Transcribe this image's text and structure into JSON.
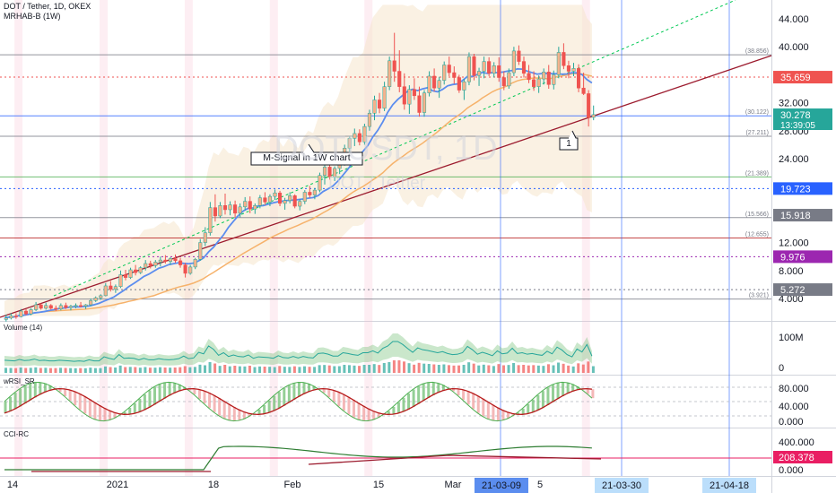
{
  "header": {
    "symbol_line": "DOT / Tether, 1D, OKEX",
    "indicator_line": "MRHAB-B (1W)"
  },
  "chart_data": {
    "type": "candlestick",
    "title": "DOT / Tether, 1D, OKEX",
    "watermark_symbol": "DOTUSDT, 1D",
    "watermark_name": "DOT / Tether",
    "y_ticks": [
      "44.000",
      "40.000",
      "36.000",
      "32.000",
      "28.000",
      "24.000",
      "20.000",
      "16.000",
      "12.000",
      "8.000",
      "4.000"
    ],
    "x_ticks": [
      "14",
      "2021",
      "18",
      "Feb",
      "15",
      "Mar",
      "5"
    ],
    "x_highlight_labels": [
      "21-03-09",
      "21-03-30",
      "21-04-18"
    ],
    "price_labels": [
      {
        "text": "35.659",
        "color": "#ef5350"
      },
      {
        "text": "30.278",
        "color": "#26a69a",
        "sub": "13:39:05"
      },
      {
        "text": "19.723",
        "color": "#2962ff"
      },
      {
        "text": "15.918",
        "color": "#787b86"
      },
      {
        "text": "9.976",
        "color": "#9c27b0"
      },
      {
        "text": "5.272",
        "color": "#787b86"
      }
    ],
    "fib_labels": [
      "(38.856)",
      "(30.122)",
      "(27.211)",
      "(21.389)",
      "(15.566)",
      "(12.655)",
      "(3.921)"
    ],
    "fib_levels": [
      38.856,
      30.122,
      27.211,
      21.389,
      15.566,
      12.655,
      3.921
    ],
    "annotation": "M-Signal in 1W chart",
    "marker_label": "1",
    "last_price": 30.278,
    "candles": [
      [
        1,
        1.7,
        0.7,
        1.2
      ],
      [
        1.2,
        1.9,
        1.0,
        1.5
      ],
      [
        1.5,
        1.9,
        1.1,
        1.4
      ],
      [
        1.4,
        2.5,
        1.3,
        2.2
      ],
      [
        2.2,
        2.5,
        1.6,
        1.8
      ],
      [
        1.8,
        2.6,
        1.6,
        2.4
      ],
      [
        2.4,
        3.5,
        2.2,
        3.1
      ],
      [
        3.1,
        3.3,
        2.4,
        2.6
      ],
      [
        2.6,
        3.4,
        2.4,
        3.0
      ],
      [
        3.0,
        3.2,
        2.4,
        2.6
      ],
      [
        2.6,
        3.0,
        2.2,
        2.5
      ],
      [
        2.5,
        3.3,
        2.3,
        3.0
      ],
      [
        3.0,
        3.4,
        2.5,
        2.7
      ],
      [
        2.7,
        3.1,
        2.3,
        2.9
      ],
      [
        2.9,
        3.3,
        2.6,
        3.0
      ],
      [
        3.0,
        3.5,
        2.7,
        2.9
      ],
      [
        2.9,
        3.2,
        2.5,
        3.1
      ],
      [
        3.1,
        4.0,
        2.9,
        3.7
      ],
      [
        3.7,
        4.3,
        3.5,
        4.1
      ],
      [
        4.1,
        4.6,
        3.8,
        4.4
      ],
      [
        4.4,
        6.2,
        4.3,
        5.8
      ],
      [
        5.8,
        6.5,
        5.0,
        5.3
      ],
      [
        5.3,
        6.0,
        4.8,
        5.7
      ],
      [
        5.7,
        8.0,
        5.5,
        7.4
      ],
      [
        7.4,
        8.1,
        6.6,
        7.0
      ],
      [
        7.0,
        8.4,
        6.8,
        8.1
      ],
      [
        8.1,
        8.8,
        7.3,
        7.7
      ],
      [
        7.7,
        8.6,
        7.5,
        8.4
      ],
      [
        8.4,
        9.5,
        8.0,
        9.0
      ],
      [
        9.0,
        9.4,
        8.3,
        8.7
      ],
      [
        8.7,
        9.5,
        8.4,
        9.2
      ],
      [
        9.2,
        10.0,
        8.6,
        9.5
      ],
      [
        9.5,
        10.2,
        9.0,
        9.3
      ],
      [
        9.3,
        9.9,
        8.8,
        9.7
      ],
      [
        9.7,
        10.3,
        9.1,
        9.4
      ],
      [
        9.4,
        9.8,
        8.4,
        8.8
      ],
      [
        8.8,
        9.1,
        7.0,
        7.6
      ],
      [
        7.6,
        8.8,
        7.4,
        8.5
      ],
      [
        8.5,
        9.8,
        8.2,
        9.6
      ],
      [
        9.6,
        12.5,
        9.4,
        12.0
      ],
      [
        12.0,
        14.2,
        11.5,
        13.4
      ],
      [
        13.4,
        17.8,
        13.0,
        17.0
      ],
      [
        17.0,
        18.9,
        15.0,
        15.8
      ],
      [
        15.8,
        17.8,
        15.5,
        17.3
      ],
      [
        17.3,
        19.0,
        16.0,
        16.7
      ],
      [
        16.7,
        17.9,
        15.9,
        17.4
      ],
      [
        17.4,
        18.0,
        15.6,
        16.2
      ],
      [
        16.2,
        17.6,
        15.6,
        17.1
      ],
      [
        17.1,
        18.5,
        16.6,
        17.9
      ],
      [
        17.9,
        18.6,
        16.2,
        16.8
      ],
      [
        16.8,
        17.6,
        16.1,
        17.3
      ],
      [
        17.3,
        18.8,
        16.9,
        18.4
      ],
      [
        18.4,
        19.2,
        17.4,
        17.8
      ],
      [
        17.8,
        18.9,
        17.2,
        18.6
      ],
      [
        18.6,
        19.6,
        18.1,
        19.1
      ],
      [
        19.1,
        19.4,
        17.2,
        17.6
      ],
      [
        17.6,
        18.4,
        16.7,
        18.0
      ],
      [
        18.0,
        19.2,
        17.6,
        18.7
      ],
      [
        18.7,
        18.9,
        16.9,
        17.2
      ],
      [
        17.2,
        18.2,
        16.6,
        17.9
      ],
      [
        17.9,
        19.5,
        17.5,
        19.2
      ],
      [
        19.2,
        20.1,
        18.4,
        18.8
      ],
      [
        18.8,
        19.8,
        18.2,
        19.5
      ],
      [
        19.5,
        22.0,
        19.2,
        21.6
      ],
      [
        21.6,
        23.2,
        20.3,
        22.8
      ],
      [
        22.8,
        23.6,
        21.0,
        21.4
      ],
      [
        21.4,
        22.9,
        20.8,
        22.6
      ],
      [
        22.6,
        23.9,
        21.8,
        23.5
      ],
      [
        23.5,
        26.0,
        23.0,
        25.5
      ],
      [
        25.5,
        27.2,
        24.4,
        26.9
      ],
      [
        26.9,
        28.3,
        25.8,
        27.6
      ],
      [
        27.6,
        28.2,
        25.9,
        26.4
      ],
      [
        26.4,
        29.0,
        26.0,
        28.6
      ],
      [
        28.6,
        31.0,
        28.0,
        30.5
      ],
      [
        30.5,
        33.0,
        29.5,
        32.4
      ],
      [
        32.4,
        33.4,
        30.5,
        31.2
      ],
      [
        31.2,
        35.0,
        30.8,
        34.3
      ],
      [
        34.3,
        38.6,
        33.8,
        38.0
      ],
      [
        38.0,
        42.0,
        35.0,
        36.5
      ],
      [
        36.5,
        39.5,
        33.5,
        34.3
      ],
      [
        34.3,
        36.2,
        31.0,
        31.8
      ],
      [
        31.8,
        34.5,
        30.4,
        33.9
      ],
      [
        33.9,
        35.5,
        32.4,
        33.0
      ],
      [
        33.0,
        34.3,
        30.0,
        30.6
      ],
      [
        30.6,
        33.8,
        30.0,
        33.4
      ],
      [
        33.4,
        36.5,
        32.9,
        35.8
      ],
      [
        35.8,
        36.9,
        33.6,
        34.1
      ],
      [
        34.1,
        35.7,
        32.7,
        35.2
      ],
      [
        35.2,
        37.9,
        34.6,
        37.4
      ],
      [
        37.4,
        38.6,
        35.8,
        36.3
      ],
      [
        36.3,
        37.2,
        34.7,
        35.6
      ],
      [
        35.6,
        36.0,
        33.4,
        33.8
      ],
      [
        33.8,
        35.4,
        32.4,
        35.0
      ],
      [
        35.0,
        39.2,
        34.5,
        38.6
      ],
      [
        38.6,
        39.0,
        35.2,
        35.9
      ],
      [
        35.9,
        37.0,
        34.4,
        36.5
      ],
      [
        36.5,
        38.6,
        35.5,
        37.9
      ],
      [
        37.9,
        38.5,
        35.8,
        36.2
      ],
      [
        36.2,
        37.8,
        35.6,
        37.3
      ],
      [
        37.3,
        38.5,
        35.0,
        35.6
      ],
      [
        35.6,
        36.5,
        33.8,
        34.4
      ],
      [
        34.4,
        36.9,
        34.0,
        36.3
      ],
      [
        36.3,
        40.0,
        35.8,
        39.4
      ],
      [
        39.4,
        40.2,
        37.4,
        37.9
      ],
      [
        37.9,
        38.6,
        35.6,
        36.2
      ],
      [
        36.2,
        37.4,
        34.8,
        35.3
      ],
      [
        35.3,
        36.5,
        33.7,
        34.3
      ],
      [
        34.3,
        35.9,
        33.4,
        35.4
      ],
      [
        35.4,
        36.9,
        34.6,
        36.4
      ],
      [
        36.4,
        37.4,
        34.0,
        34.6
      ],
      [
        34.6,
        36.6,
        33.9,
        36.0
      ],
      [
        36.0,
        40.0,
        35.5,
        39.2
      ],
      [
        39.2,
        40.5,
        36.8,
        37.3
      ],
      [
        37.3,
        38.0,
        35.5,
        36.5
      ],
      [
        36.5,
        37.7,
        35.8,
        36.9
      ],
      [
        36.9,
        37.5,
        33.5,
        34.1
      ],
      [
        34.1,
        36.3,
        33.1,
        33.3
      ],
      [
        33.3,
        33.8,
        28.6,
        29.9
      ],
      [
        29.9,
        31.6,
        29.5,
        30.3
      ]
    ],
    "panels": [
      {
        "name": "Volume (14)",
        "ticks": [
          "100M",
          "0"
        ]
      },
      {
        "name": "wRSI_SR",
        "ticks": [
          "80.000",
          "40.000",
          "0.000"
        ]
      },
      {
        "name": "CCI-RC",
        "ticks": [
          "400.000",
          "208.378",
          "0.000"
        ],
        "last_value": "208.378"
      }
    ]
  },
  "colors": {
    "up": "#26a69a",
    "down": "#ef5350",
    "up_fill": "#f5b28c",
    "grid": "#eef0f3",
    "axis_text": "#131722"
  }
}
